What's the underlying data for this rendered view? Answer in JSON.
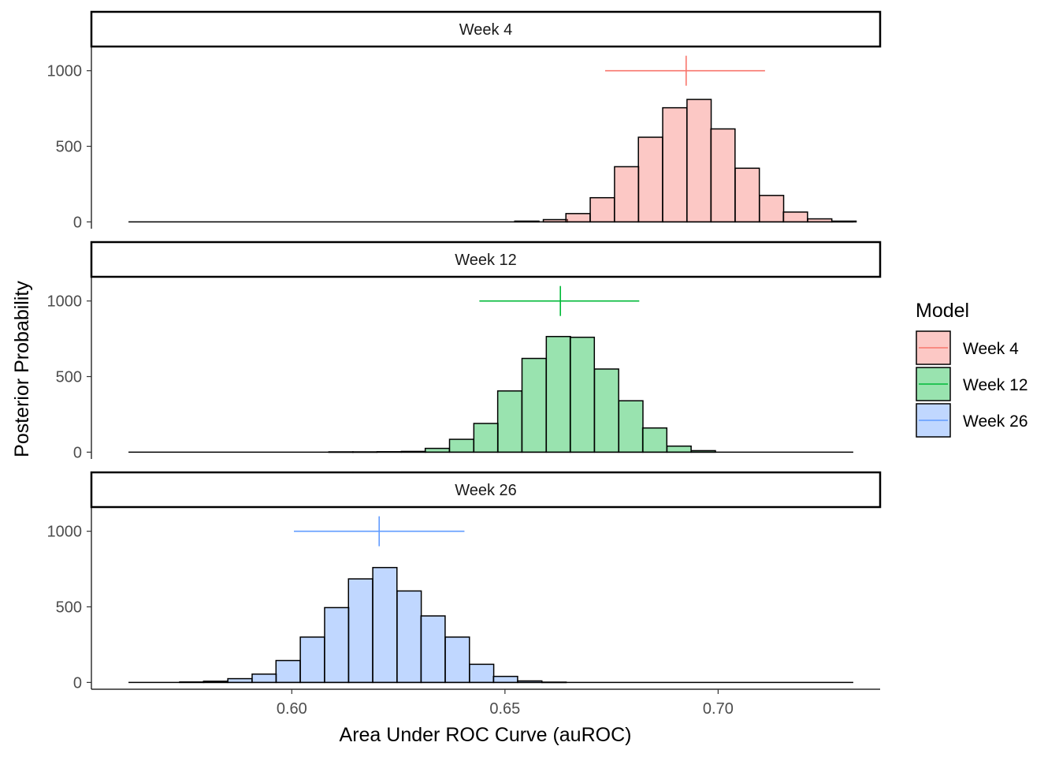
{
  "chart_data": {
    "type": "histogram",
    "xlabel": "Area Under ROC Curve (auROC)",
    "ylabel": "Posterior Probability",
    "x_range": [
      0.553,
      0.738
    ],
    "y_range": [
      -45,
      1160
    ],
    "x_ticks": [
      0.6,
      0.65,
      0.7
    ],
    "x_tick_labels": [
      "0.60",
      "0.65",
      "0.70"
    ],
    "y_ticks": [
      0,
      500,
      1000
    ],
    "y_tick_labels": [
      "0",
      "500",
      "1000"
    ],
    "bin_width": 0.005667,
    "baseline_range": [
      0.5617,
      0.7317
    ],
    "legend": {
      "title": "Model",
      "placement": "right",
      "entries": [
        "Week 4",
        "Week 12",
        "Week 26"
      ]
    },
    "panels": [
      {
        "title": "Week 4",
        "fill": "#F8766D",
        "line": "#F8766D",
        "bins_x_start": [
          0.6523,
          0.659,
          0.6643,
          0.67,
          0.6757,
          0.6813,
          0.687,
          0.6927,
          0.6983,
          0.704,
          0.7097,
          0.7153,
          0.721,
          0.7267
        ],
        "counts": [
          5,
          15,
          55,
          160,
          365,
          560,
          755,
          810,
          615,
          355,
          175,
          65,
          20,
          5
        ],
        "interval": {
          "center": 0.6925,
          "lower": 0.6735,
          "upper": 0.711,
          "y": 1000
        }
      },
      {
        "title": "Week 12",
        "fill": "#00BA38",
        "line": "#00BA38",
        "bins_x_start": [
          0.6087,
          0.6143,
          0.62,
          0.6257,
          0.6313,
          0.637,
          0.6427,
          0.6483,
          0.654,
          0.6597,
          0.6653,
          0.671,
          0.6767,
          0.6823,
          0.688,
          0.6937
        ],
        "counts": [
          2,
          2,
          3,
          5,
          25,
          85,
          190,
          405,
          620,
          765,
          760,
          550,
          340,
          160,
          40,
          10
        ],
        "interval": {
          "center": 0.663,
          "lower": 0.644,
          "upper": 0.6815,
          "y": 1000
        }
      },
      {
        "title": "Week 26",
        "fill": "#619CFF",
        "line": "#619CFF",
        "bins_x_start": [
          0.5737,
          0.5793,
          0.585,
          0.5907,
          0.5963,
          0.602,
          0.6077,
          0.6133,
          0.619,
          0.6247,
          0.6303,
          0.636,
          0.6417,
          0.6473,
          0.653,
          0.6587
        ],
        "counts": [
          3,
          8,
          25,
          55,
          145,
          300,
          495,
          685,
          760,
          605,
          440,
          300,
          120,
          40,
          10,
          2
        ],
        "interval": {
          "center": 0.6205,
          "lower": 0.6005,
          "upper": 0.6405,
          "y": 1000
        }
      }
    ]
  }
}
